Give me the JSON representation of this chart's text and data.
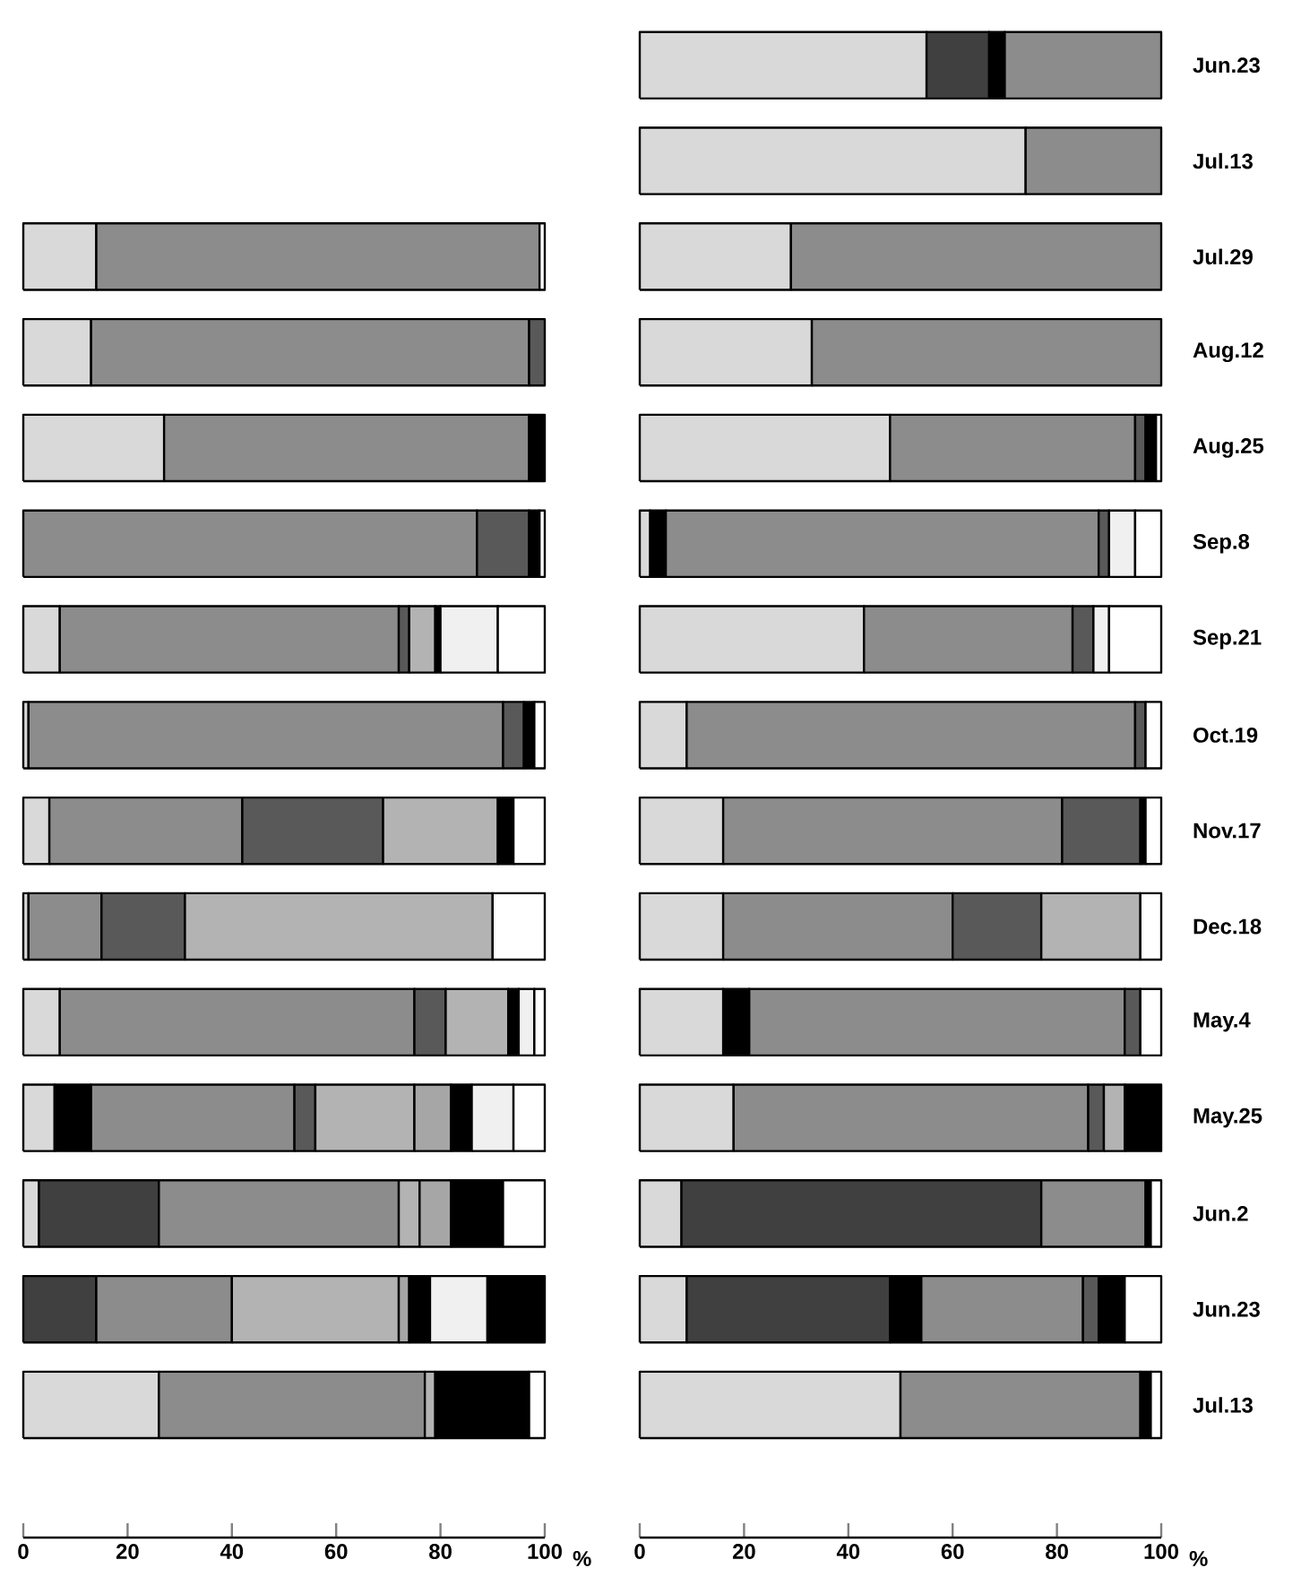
{
  "chart_data": [
    {
      "type": "bar",
      "orientation": "horizontal",
      "stacked": true,
      "tick_labels": "x",
      "xlabel": "%",
      "xlim": [
        0,
        100
      ],
      "xticks": [
        0,
        20,
        40,
        60,
        80,
        100
      ],
      "categories": [
        null,
        null,
        null,
        null,
        null,
        null,
        null,
        null,
        null,
        null,
        null,
        null,
        null
      ],
      "series": [
        {
          "values": [
            14,
            13,
            27,
            87,
            7,
            1,
            5,
            1,
            7,
            6,
            3,
            14,
            26
          ],
          "colors": [
            "#d9d9d9",
            "#d9d9d9",
            "#d9d9d9",
            "#8c8c8c",
            "#d9d9d9",
            "#d9d9d9",
            "#d9d9d9",
            "#d9d9d9",
            "#d9d9d9",
            "#d9d9d9",
            "#d9d9d9",
            "#404040",
            "#d9d9d9"
          ]
        },
        {
          "values": [
            85,
            84,
            70,
            10,
            65,
            91,
            37,
            14,
            68,
            7,
            23,
            26,
            51
          ],
          "colors": [
            "#8c8c8c",
            "#8c8c8c",
            "#8c8c8c",
            "#595959",
            "#8c8c8c",
            "#8c8c8c",
            "#8c8c8c",
            "#8c8c8c",
            "#8c8c8c",
            "#000000",
            "#404040",
            "#8c8c8c",
            "#8c8c8c"
          ]
        },
        {
          "values": [
            1,
            3,
            3,
            2,
            2,
            4,
            27,
            16,
            6,
            39,
            46,
            32,
            2
          ],
          "colors": [
            "#ffffff",
            "#595959",
            "#000000",
            "#000000",
            "#595959",
            "#595959",
            "#595959",
            "#595959",
            "#595959",
            "#8c8c8c",
            "#8c8c8c",
            "#b3b3b3",
            "#b3b3b3"
          ]
        },
        {
          "values": [
            null,
            null,
            null,
            1,
            5,
            2,
            22,
            59,
            12,
            4,
            4,
            2,
            18
          ],
          "colors": [
            null,
            null,
            null,
            "#ffffff",
            "#b3b3b3",
            "#000000",
            "#b3b3b3",
            "#b3b3b3",
            "#b3b3b3",
            "#595959",
            "#b3b3b3",
            "#a6a6a6",
            "#000000"
          ]
        },
        {
          "values": [
            null,
            null,
            null,
            null,
            1,
            2,
            3,
            10,
            2,
            19,
            6,
            4,
            3
          ],
          "colors": [
            null,
            null,
            null,
            null,
            "#000000",
            "#ffffff",
            "#000000",
            "#ffffff",
            "#000000",
            "#b3b3b3",
            "#a6a6a6",
            "#000000",
            "#ffffff"
          ]
        },
        {
          "values": [
            null,
            null,
            null,
            null,
            11,
            null,
            6,
            null,
            3,
            7,
            10,
            11,
            null
          ],
          "colors": [
            null,
            null,
            null,
            null,
            "#f0f0f0",
            null,
            "#ffffff",
            null,
            "#f0f0f0",
            "#a6a6a6",
            "#000000",
            "#f0f0f0",
            null
          ]
        },
        {
          "values": [
            null,
            null,
            null,
            null,
            9,
            null,
            null,
            null,
            2,
            4,
            8,
            11,
            null
          ],
          "colors": [
            null,
            null,
            null,
            null,
            "#ffffff",
            null,
            null,
            null,
            "#ffffff",
            "#000000",
            "#ffffff",
            "#000000",
            null
          ]
        },
        {
          "values": [
            null,
            null,
            null,
            null,
            null,
            null,
            null,
            null,
            null,
            8,
            null,
            null,
            null
          ],
          "colors": [
            null,
            null,
            null,
            null,
            null,
            null,
            null,
            null,
            null,
            "#f0f0f0",
            null,
            null,
            null
          ]
        },
        {
          "values": [
            null,
            null,
            null,
            null,
            null,
            null,
            null,
            null,
            null,
            6,
            null,
            null,
            null
          ],
          "colors": [
            null,
            null,
            null,
            null,
            null,
            null,
            null,
            null,
            null,
            "#ffffff",
            null,
            null,
            null
          ]
        }
      ]
    },
    {
      "type": "bar",
      "orientation": "horizontal",
      "stacked": true,
      "xlabel": "%",
      "xlim": [
        0,
        100
      ],
      "xticks": [
        0,
        20,
        40,
        60,
        80,
        100
      ],
      "categories": [
        "Jun.23",
        "Jul.13",
        "Jul.29",
        "Aug.12",
        "Aug.25",
        "Sep.8",
        "Sep.21",
        "Oct.19",
        "Nov.17",
        "Dec.18",
        "May.4",
        "May.25",
        "Jun.2",
        "Jun.23",
        "Jul.13"
      ],
      "series": [
        {
          "values": [
            55,
            74,
            29,
            33,
            48,
            2,
            43,
            9,
            16,
            16,
            16,
            18,
            8,
            9,
            50
          ],
          "color": "#d9d9d9"
        },
        {
          "values": [
            12,
            26,
            71,
            67,
            47,
            3,
            40,
            86,
            65,
            44,
            5,
            68,
            69,
            39,
            46
          ],
          "colors": [
            "#404040",
            "#8c8c8c",
            "#8c8c8c",
            "#8c8c8c",
            "#8c8c8c",
            "#000000",
            "#8c8c8c",
            "#8c8c8c",
            "#8c8c8c",
            "#8c8c8c",
            "#000000",
            "#8c8c8c",
            "#404040",
            "#404040",
            "#8c8c8c"
          ]
        },
        {
          "values": [
            3,
            null,
            null,
            null,
            2,
            83,
            4,
            2,
            15,
            17,
            72,
            3,
            20,
            6,
            2
          ],
          "colors": [
            "#000000",
            null,
            null,
            null,
            "#595959",
            "#8c8c8c",
            "#595959",
            "#595959",
            "#595959",
            "#595959",
            "#8c8c8c",
            "#595959",
            "#8c8c8c",
            "#000000",
            "#000000"
          ]
        },
        {
          "values": [
            30,
            null,
            null,
            null,
            2,
            2,
            3,
            3,
            1,
            19,
            3,
            4,
            1,
            31,
            2
          ],
          "colors": [
            "#8c8c8c",
            null,
            null,
            null,
            "#000000",
            "#595959",
            "#f0f0f0",
            "#ffffff",
            "#000000",
            "#b3b3b3",
            "#595959",
            "#b3b3b3",
            "#000000",
            "#8c8c8c",
            "#ffffff"
          ]
        },
        {
          "values": [
            null,
            null,
            null,
            null,
            1,
            5,
            10,
            null,
            3,
            4,
            4,
            7,
            2,
            3,
            null
          ],
          "colors": [
            null,
            null,
            null,
            null,
            "#ffffff",
            "#f0f0f0",
            "#ffffff",
            null,
            "#ffffff",
            "#ffffff",
            "#ffffff",
            "#000000",
            "#ffffff",
            "#595959",
            null
          ]
        },
        {
          "values": [
            null,
            null,
            null,
            null,
            null,
            5,
            null,
            null,
            null,
            null,
            null,
            null,
            null,
            5,
            null
          ],
          "colors": [
            null,
            null,
            null,
            null,
            null,
            "#ffffff",
            null,
            null,
            null,
            null,
            null,
            null,
            null,
            "#000000",
            null
          ]
        },
        {
          "values": [
            null,
            null,
            null,
            null,
            null,
            null,
            null,
            null,
            null,
            null,
            null,
            null,
            null,
            7,
            null
          ],
          "colors": [
            null,
            null,
            null,
            null,
            null,
            null,
            null,
            null,
            null,
            null,
            null,
            null,
            null,
            "#ffffff",
            null
          ]
        }
      ]
    }
  ]
}
